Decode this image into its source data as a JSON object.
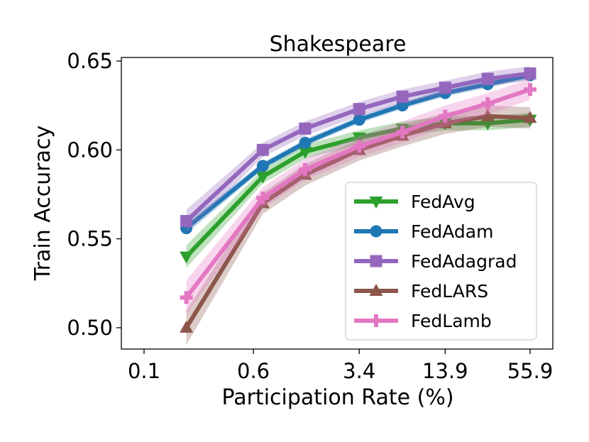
{
  "chart_data": {
    "type": "line",
    "title": "Shakespeare",
    "xlabel": "Participation Rate (%)",
    "ylabel": "Train Accuracy",
    "x_scale": "log",
    "x_ticks": [
      "0.1",
      "0.6",
      "3.4",
      "13.9",
      "55.9"
    ],
    "y_ticks": [
      "0.50",
      "0.55",
      "0.60",
      "0.65"
    ],
    "ylim": [
      0.488,
      0.652
    ],
    "grid": false,
    "legend_position": "lower-right",
    "x": [
      0.2,
      0.7,
      1.4,
      3.4,
      6.9,
      13.9,
      27.9,
      55.9
    ],
    "series": [
      {
        "name": "FedAvg",
        "color": "#2ca02c",
        "marker": "triangle-down",
        "values": [
          0.54,
          0.585,
          0.599,
          0.607,
          0.612,
          0.615,
          0.615,
          0.617
        ],
        "band": 0.004
      },
      {
        "name": "FedAdam",
        "color": "#1f77b4",
        "marker": "circle",
        "values": [
          0.556,
          0.591,
          0.604,
          0.617,
          0.625,
          0.632,
          0.637,
          0.642
        ],
        "band": 0.002
      },
      {
        "name": "FedAdagrad",
        "color": "#9467bd",
        "marker": "square",
        "values": [
          0.56,
          0.6,
          0.612,
          0.623,
          0.63,
          0.635,
          0.64,
          0.643
        ],
        "band": 0.004
      },
      {
        "name": "FedLARS",
        "color": "#8c564b",
        "marker": "triangle-up",
        "values": [
          0.5,
          0.57,
          0.586,
          0.6,
          0.608,
          0.615,
          0.619,
          0.618
        ],
        "band": 0.006
      },
      {
        "name": "FedLamb",
        "color": "#e377c2",
        "marker": "plus",
        "values": [
          0.517,
          0.573,
          0.589,
          0.602,
          0.61,
          0.619,
          0.626,
          0.634
        ],
        "band": 0.006
      }
    ]
  }
}
